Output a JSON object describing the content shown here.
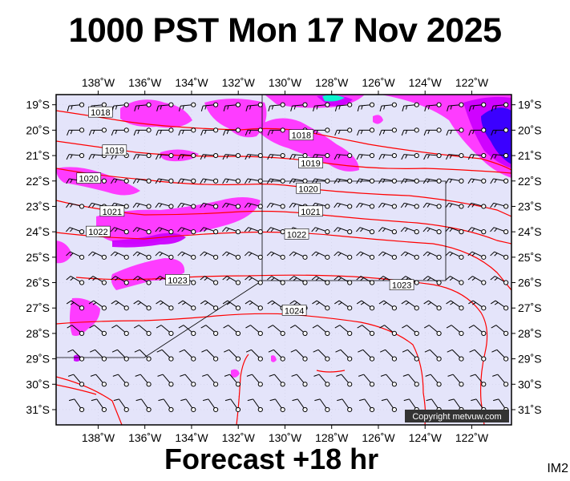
{
  "title": "1000 PST Mon 17 Nov 2025",
  "subtitle": "Forecast +18 hr",
  "image_id": "IM2",
  "copyright": "Copyright metvuw.com",
  "colors": {
    "sea": "#e4e4fa",
    "rain_light": "#ff33ff",
    "rain_med": "#cc00ff",
    "rain_heavy": "#3300ff",
    "rain_core": "#00ffcc",
    "isobar": "#ff0000",
    "barb": "#000000",
    "grid": "#cfcfe6"
  },
  "axes": {
    "lon_labels": [
      "138˚W",
      "136˚W",
      "134˚W",
      "132˚W",
      "130˚W",
      "128˚W",
      "126˚W",
      "124˚W",
      "122˚W"
    ],
    "lon_values": [
      -138,
      -136,
      -134,
      -132,
      -130,
      -128,
      -126,
      -124,
      -122
    ],
    "lat_labels": [
      "19˚S",
      "20˚S",
      "21˚S",
      "22˚S",
      "23˚S",
      "24˚S",
      "25˚S",
      "26˚S",
      "27˚S",
      "28˚S",
      "29˚S",
      "30˚S",
      "31˚S"
    ],
    "lat_values": [
      -19,
      -20,
      -21,
      -22,
      -23,
      -24,
      -25,
      -26,
      -27,
      -28,
      -29,
      -30,
      -31
    ],
    "lon_range": [
      -139.8,
      -120.3
    ],
    "lat_range": [
      -18.6,
      -31.6
    ]
  },
  "isobar_labels": [
    {
      "text": "1018",
      "lon": -137.9,
      "lat": -19.3
    },
    {
      "text": "1019",
      "lon": -137.3,
      "lat": -20.8
    },
    {
      "text": "1020",
      "lon": -138.4,
      "lat": -21.9
    },
    {
      "text": "1021",
      "lon": -137.4,
      "lat": -23.2
    },
    {
      "text": "1022",
      "lon": -138.0,
      "lat": -24.0
    },
    {
      "text": "1023",
      "lon": -134.6,
      "lat": -25.9
    },
    {
      "text": "1018",
      "lon": -129.3,
      "lat": -20.2
    },
    {
      "text": "1019",
      "lon": -128.9,
      "lat": -21.3
    },
    {
      "text": "1020",
      "lon": -129.0,
      "lat": -22.3
    },
    {
      "text": "1021",
      "lon": -128.9,
      "lat": -23.2
    },
    {
      "text": "1022",
      "lon": -129.5,
      "lat": -24.1
    },
    {
      "text": "1023",
      "lon": -125.0,
      "lat": -26.1
    },
    {
      "text": "1024",
      "lon": -129.6,
      "lat": -27.1
    }
  ]
}
